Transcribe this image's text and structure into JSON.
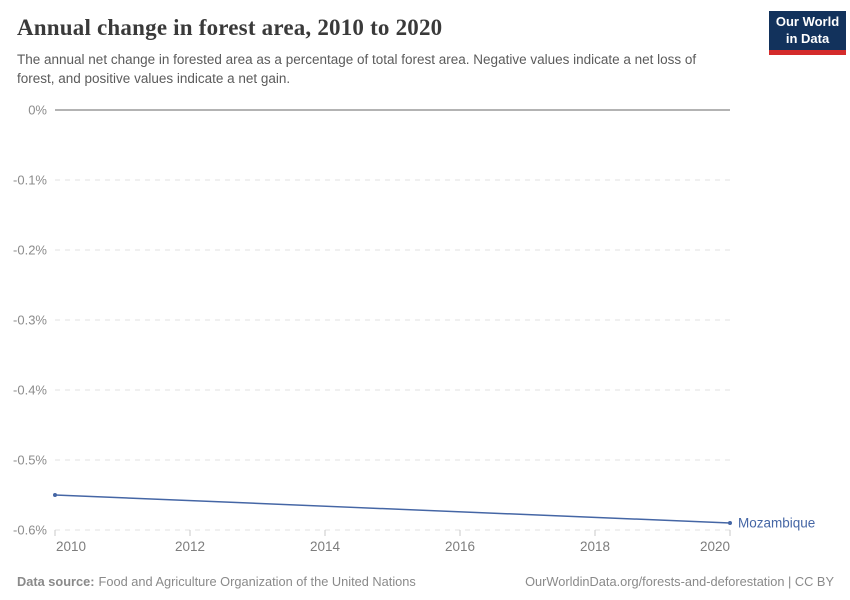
{
  "header": {
    "title": "Annual change in forest area, 2010 to 2020",
    "subtitle": "The annual net change in forested area as a percentage of total forest area. Negative values indicate a net loss of forest, and positive values indicate a net gain."
  },
  "logo": {
    "line1": "Our World",
    "line2": "in Data",
    "bg_color": "#12325c",
    "accent_color": "#d42b2b"
  },
  "footer": {
    "data_source_label": "Data source:",
    "data_source_value": "Food and Agriculture Organization of the United Nations",
    "credit": "OurWorldinData.org/forests-and-deforestation | CC BY"
  },
  "chart_data": {
    "type": "line",
    "title": "Annual change in forest area, 2010 to 2020",
    "xlabel": "",
    "ylabel": "",
    "x_range": [
      2010,
      2020
    ],
    "y_range": [
      -0.6,
      0
    ],
    "x_ticks": [
      2010,
      2012,
      2014,
      2016,
      2018,
      2020
    ],
    "y_ticks": [
      {
        "value": 0,
        "label": "0%"
      },
      {
        "value": -0.1,
        "label": "-0.1%"
      },
      {
        "value": -0.2,
        "label": "-0.2%"
      },
      {
        "value": -0.3,
        "label": "-0.3%"
      },
      {
        "value": -0.4,
        "label": "-0.4%"
      },
      {
        "value": -0.5,
        "label": "-0.5%"
      },
      {
        "value": -0.6,
        "label": "-0.6%"
      }
    ],
    "grid": "horizontal-dashed",
    "legend_position": "end-of-line-label",
    "unit": "%",
    "series": [
      {
        "name": "Mozambique",
        "color": "#4566a5",
        "points": [
          [
            2010,
            -0.55
          ],
          [
            2020,
            -0.59
          ]
        ]
      }
    ],
    "style": {
      "zero_line_color": "#a8a8a8",
      "grid_color": "#e0e0e0",
      "y_label_color": "#8c8c8c",
      "x_label_color": "#7d7d7d",
      "tick_color": "#c8c8c8"
    }
  }
}
